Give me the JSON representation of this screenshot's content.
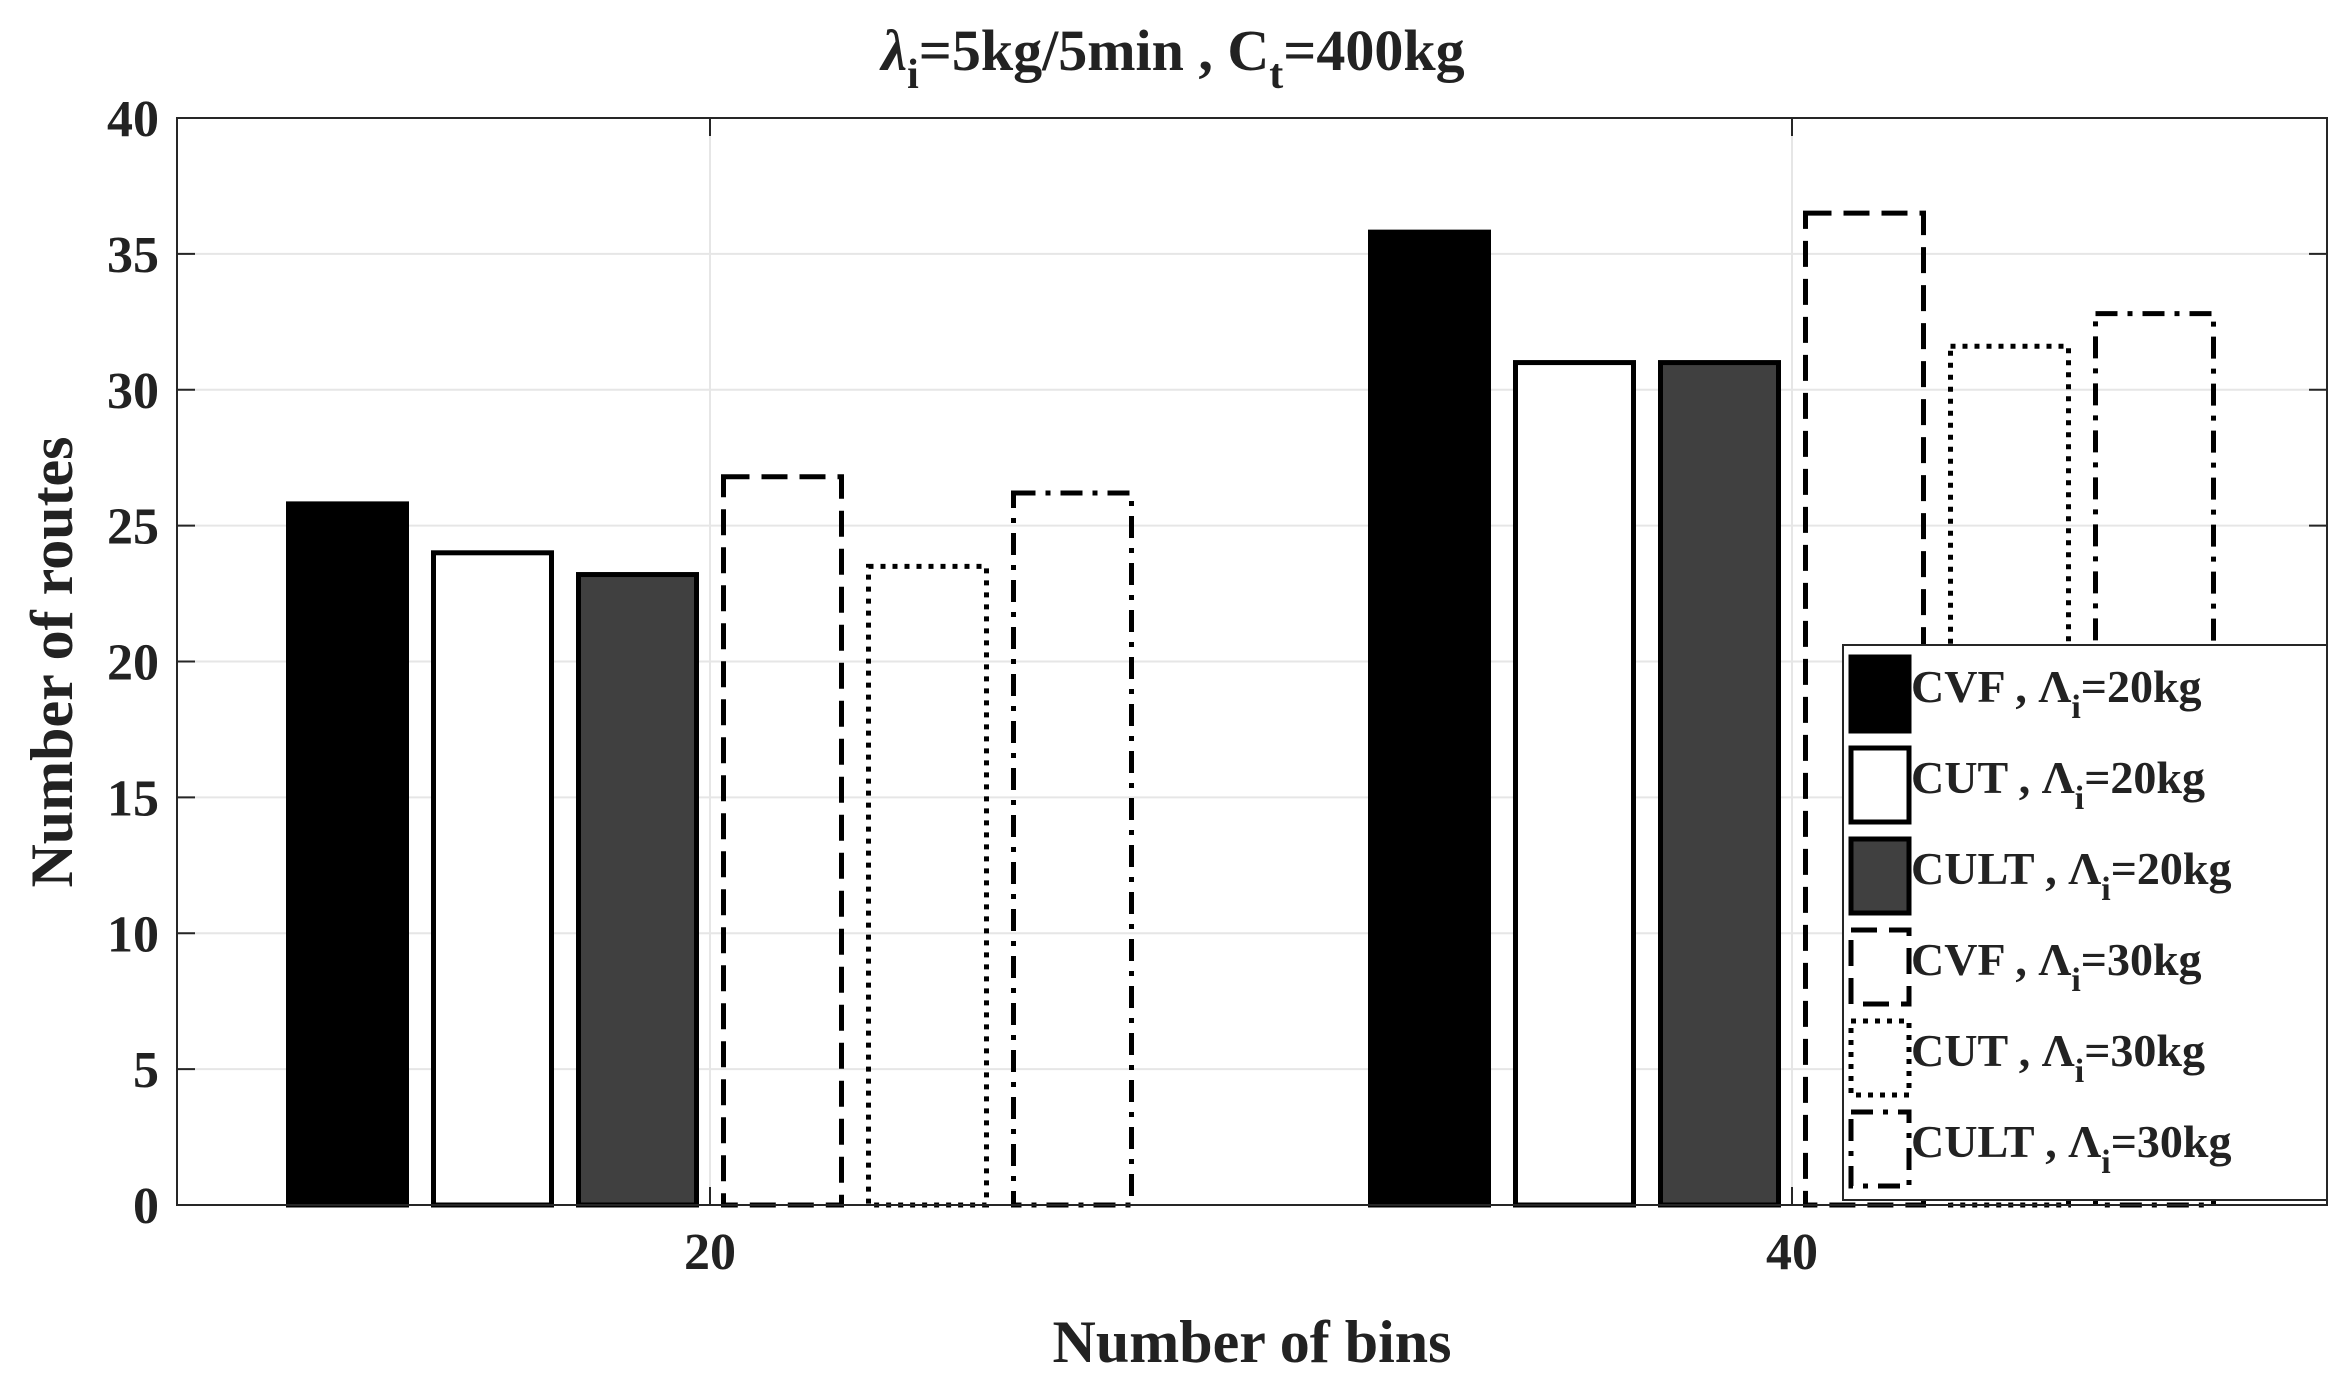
{
  "chart_data": {
    "type": "bar",
    "title": {
      "lambda_sym": "λ",
      "lambda_sub": "i",
      "part1": "=5kg/5min , C",
      "c_sub": "t",
      "part2": "=400kg"
    },
    "xlabel": "Number of bins",
    "ylabel": "Number of routes",
    "categories": [
      "20",
      "40"
    ],
    "ylim": [
      0,
      40
    ],
    "yticks": [
      "0",
      "5",
      "10",
      "15",
      "20",
      "25",
      "30",
      "35",
      "40"
    ],
    "grid": true,
    "legend_position": "bottom-right",
    "series": [
      {
        "name": "CVF , Λi=20kg",
        "label_main": "CVF , Λ",
        "label_sub": "i",
        "label_end": "=20kg",
        "style": "solid",
        "fill": "#000000",
        "values": [
          25.8,
          35.8
        ]
      },
      {
        "name": "CUT , Λi=20kg",
        "label_main": "CUT , Λ",
        "label_sub": "i",
        "label_end": "=20kg",
        "style": "solid",
        "fill": "#ffffff",
        "values": [
          24.0,
          31.0
        ]
      },
      {
        "name": "CULT , Λi=20kg",
        "label_main": "CULT , Λ",
        "label_sub": "i",
        "label_end": "=20kg",
        "style": "solid",
        "fill": "#404040",
        "values": [
          23.2,
          31.0
        ]
      },
      {
        "name": "CVF , Λi=30kg",
        "label_main": "CVF , Λ",
        "label_sub": "i",
        "label_end": "=30kg",
        "style": "dashed",
        "fill": "none",
        "values": [
          26.8,
          36.5
        ]
      },
      {
        "name": "CUT , Λi=30kg",
        "label_main": "CUT , Λ",
        "label_sub": "i",
        "label_end": "=30kg",
        "style": "dotted",
        "fill": "none",
        "values": [
          23.5,
          31.6
        ]
      },
      {
        "name": "CULT , Λi=30kg",
        "label_main": "CULT , Λ",
        "label_sub": "i",
        "label_end": "=30kg",
        "style": "dashdot",
        "fill": "none",
        "values": [
          26.2,
          32.8
        ]
      }
    ]
  }
}
